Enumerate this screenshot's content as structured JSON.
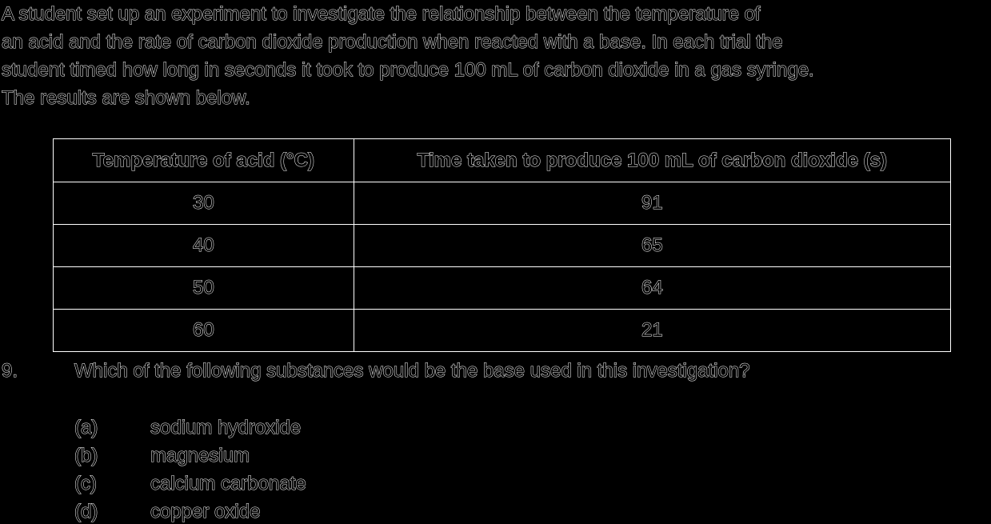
{
  "intro": {
    "lines": [
      "A student set up an experiment to investigate the relationship between the temperature of",
      "an acid and the rate of carbon dioxide production when reacted with a base. In each trial the",
      "student timed how long in seconds it took to produce 100 mL of carbon dioxide in a gas syringe.",
      "The results are shown below."
    ]
  },
  "table": {
    "headers": [
      "Temperature of acid (°C)",
      "Time taken to produce 100 mL of carbon dioxide (s)"
    ],
    "rows": [
      [
        "30",
        "91"
      ],
      [
        "40",
        "65"
      ],
      [
        "50",
        "64"
      ],
      [
        "60",
        "21"
      ]
    ]
  },
  "question": {
    "number": "9.",
    "text": "Which of the following substances would be the base used in this investigation?",
    "options": [
      {
        "letter": "(a)",
        "text": "sodium hydroxide"
      },
      {
        "letter": "(b)",
        "text": "magnesium"
      },
      {
        "letter": "(c)",
        "text": "calcium carbonate"
      },
      {
        "letter": "(d)",
        "text": "copper oxide"
      }
    ]
  },
  "colors": {
    "background": "#000000",
    "text_fill": "#000000",
    "text_outline": "#ffffff"
  }
}
